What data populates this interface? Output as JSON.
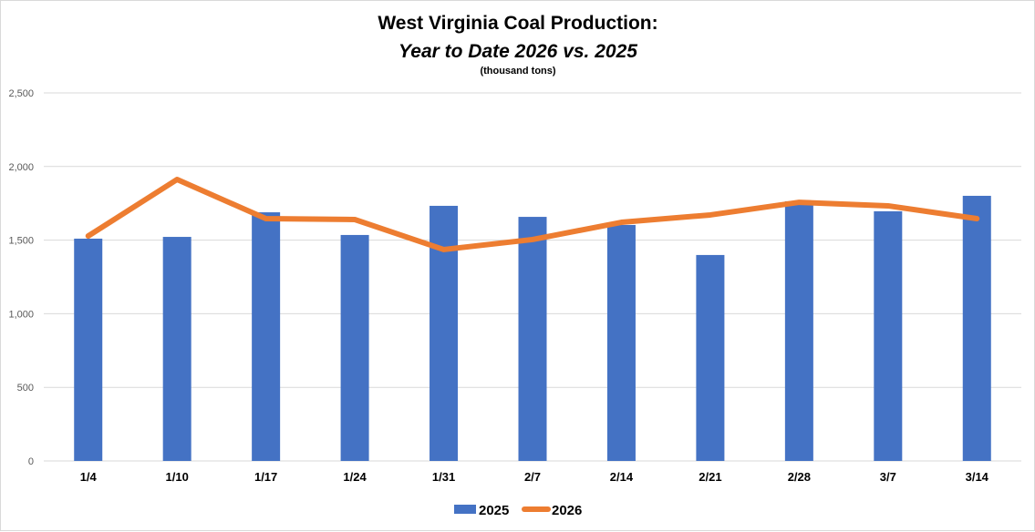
{
  "chart_data": {
    "type": "bar+line",
    "title": "West Virginia Coal Production:",
    "subtitle": "Year to Date 2026 vs. 2025",
    "units": "(thousand tons)",
    "xlabel": "",
    "ylabel": "",
    "ylim": [
      0,
      2500
    ],
    "yticks": [
      0,
      500,
      1000,
      1500,
      2000,
      2500
    ],
    "ytick_labels": [
      "0",
      "500",
      "1,000",
      "1,500",
      "2,000",
      "2,500"
    ],
    "grid": true,
    "legend_position": "bottom",
    "categories": [
      "1/4",
      "1/10",
      "1/17",
      "1/24",
      "1/31",
      "2/7",
      "2/14",
      "2/21",
      "2/28",
      "3/7",
      "3/14"
    ],
    "series": [
      {
        "name": "2025",
        "type": "bar",
        "color": "#4472c4",
        "values": [
          1510,
          1522,
          1689,
          1535,
          1733,
          1658,
          1603,
          1399,
          1764,
          1696,
          1801
        ]
      },
      {
        "name": "2026",
        "type": "line",
        "color": "#ed7d31",
        "values": [
          1528,
          1912,
          1646,
          1640,
          1436,
          1504,
          1621,
          1671,
          1757,
          1733,
          1646
        ]
      }
    ]
  }
}
